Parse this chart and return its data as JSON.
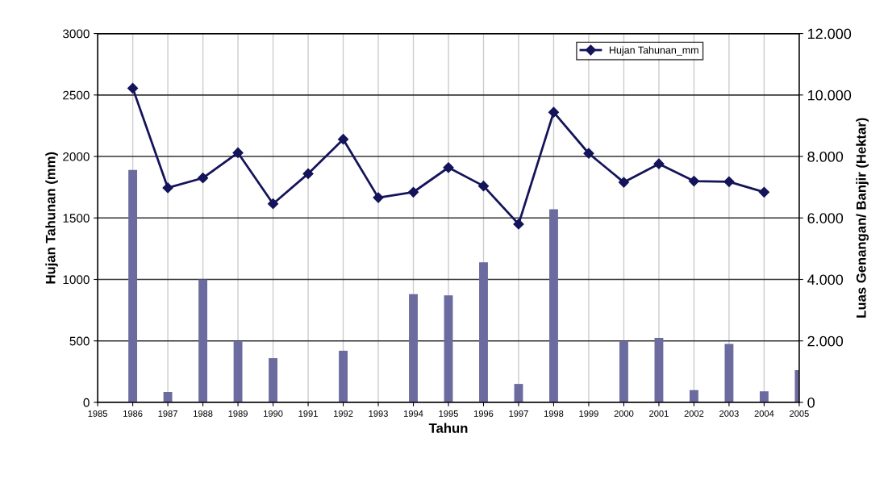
{
  "chart_data": {
    "type": "line",
    "xlabel": "Tahun",
    "ylabel": "Hujan Tahunan (mm)",
    "y2label": "Luas Genangan/ Banjir (Hektar)",
    "x": [
      1986,
      1987,
      1988,
      1989,
      1990,
      1991,
      1992,
      1993,
      1994,
      1995,
      1996,
      1997,
      1998,
      1999,
      2000,
      2001,
      2002,
      2003,
      2004,
      2005
    ],
    "series": [
      {
        "type": "bar",
        "axis": "y2",
        "color": "#6b6b9f",
        "values": [
          7560,
          340,
          4000,
          2000,
          1440,
          null,
          1680,
          null,
          3520,
          3480,
          4560,
          600,
          6280,
          null,
          2000,
          2100,
          400,
          1900,
          360,
          1050
        ]
      },
      {
        "name": "Hujan Tahunan_mm",
        "color": "#14145a",
        "marker": "diamond",
        "values": [
          2555,
          1745,
          1825,
          2030,
          1615,
          1860,
          2140,
          1665,
          1710,
          1910,
          1760,
          1450,
          2360,
          2025,
          1790,
          1940,
          1800,
          1795,
          1710,
          null
        ]
      }
    ],
    "xlim": [
      1985,
      2005
    ],
    "xticks": [
      1985,
      1986,
      1987,
      1988,
      1989,
      1990,
      1991,
      1992,
      1993,
      1994,
      1995,
      1996,
      1997,
      1998,
      1999,
      2000,
      2001,
      2002,
      2003,
      2004,
      2005
    ],
    "ylim": [
      0,
      3000
    ],
    "yticks": [
      0,
      500,
      1000,
      1500,
      2000,
      2500,
      3000
    ],
    "y2lim": [
      0,
      12000
    ],
    "y2ticks": [
      0,
      {
        "value": 2000,
        "label": "2.000"
      },
      {
        "value": 4000,
        "label": "4.000"
      },
      {
        "value": 6000,
        "label": "6.000"
      },
      {
        "value": 8000,
        "label": "8.000"
      },
      {
        "value": 10000,
        "label": "10.000"
      },
      {
        "value": 12000,
        "label": "12.000"
      }
    ],
    "grid": true,
    "legend": "top right"
  }
}
